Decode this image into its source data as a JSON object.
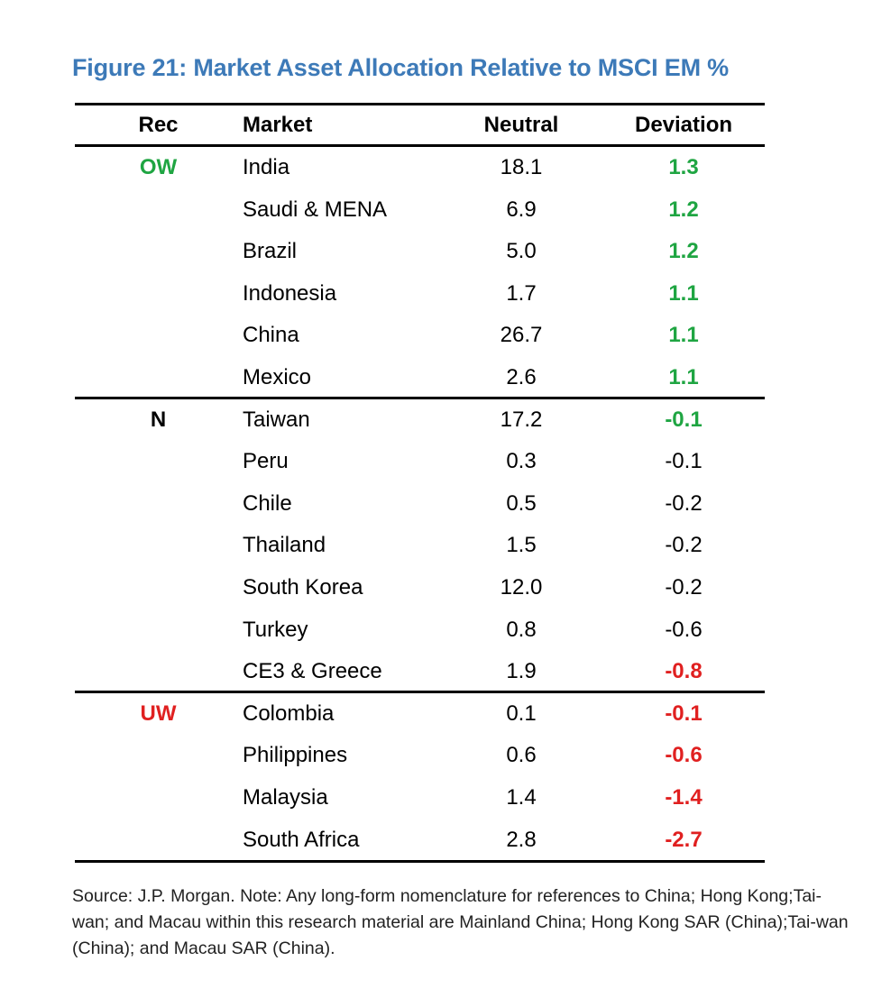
{
  "title": "Figure 21: Market Asset Allocation Relative to MSCI EM %",
  "colors": {
    "title": "#3d7ab8",
    "positive": "#1fa542",
    "negative": "#e02020",
    "neutral": "#000000"
  },
  "headers": {
    "rec": "Rec",
    "market": "Market",
    "neutral": "Neutral",
    "deviation": "Deviation"
  },
  "rows": [
    {
      "rec": "OW",
      "rec_color": "positive",
      "market": "India",
      "neutral": "18.1",
      "deviation": "1.3",
      "dev_color": "positive",
      "dev_bold": true
    },
    {
      "rec": "",
      "market": "Saudi & MENA",
      "neutral": "6.9",
      "deviation": "1.2",
      "dev_color": "positive",
      "dev_bold": true
    },
    {
      "rec": "",
      "market": "Brazil",
      "neutral": "5.0",
      "deviation": "1.2",
      "dev_color": "positive",
      "dev_bold": true
    },
    {
      "rec": "",
      "market": "Indonesia",
      "neutral": "1.7",
      "deviation": "1.1",
      "dev_color": "positive",
      "dev_bold": true
    },
    {
      "rec": "",
      "market": "China",
      "neutral": "26.7",
      "deviation": "1.1",
      "dev_color": "positive",
      "dev_bold": true
    },
    {
      "rec": "",
      "market": "Mexico",
      "neutral": "2.6",
      "deviation": "1.1",
      "dev_color": "positive",
      "dev_bold": true
    },
    {
      "rec": "N",
      "rec_color": "neutral",
      "market": "Taiwan",
      "neutral": "17.2",
      "deviation": "-0.1",
      "dev_color": "positive",
      "dev_bold": true
    },
    {
      "rec": "",
      "market": "Peru",
      "neutral": "0.3",
      "deviation": "-0.1",
      "dev_color": "neutral",
      "dev_bold": false
    },
    {
      "rec": "",
      "market": "Chile",
      "neutral": "0.5",
      "deviation": "-0.2",
      "dev_color": "neutral",
      "dev_bold": false
    },
    {
      "rec": "",
      "market": "Thailand",
      "neutral": "1.5",
      "deviation": "-0.2",
      "dev_color": "neutral",
      "dev_bold": false
    },
    {
      "rec": "",
      "market": "South Korea",
      "neutral": "12.0",
      "deviation": "-0.2",
      "dev_color": "neutral",
      "dev_bold": false
    },
    {
      "rec": "",
      "market": "Turkey",
      "neutral": "0.8",
      "deviation": "-0.6",
      "dev_color": "neutral",
      "dev_bold": false
    },
    {
      "rec": "",
      "market": "CE3 & Greece",
      "neutral": "1.9",
      "deviation": "-0.8",
      "dev_color": "negative",
      "dev_bold": true
    },
    {
      "rec": "UW",
      "rec_color": "negative",
      "market": "Colombia",
      "neutral": "0.1",
      "deviation": "-0.1",
      "dev_color": "negative",
      "dev_bold": true
    },
    {
      "rec": "",
      "market": "Philippines",
      "neutral": "0.6",
      "deviation": "-0.6",
      "dev_color": "negative",
      "dev_bold": true
    },
    {
      "rec": "",
      "market": "Malaysia",
      "neutral": "1.4",
      "deviation": "-1.4",
      "dev_color": "negative",
      "dev_bold": true
    },
    {
      "rec": "",
      "market": "South Africa",
      "neutral": "2.8",
      "deviation": "-2.7",
      "dev_color": "negative",
      "dev_bold": true
    }
  ],
  "group_break_after": [
    5,
    12
  ],
  "source": "Source: J.P. Morgan. Note: Any long-form nomenclature for references to China; Hong Kong;Tai-wan; and Macau within this research material are Mainland China; Hong Kong SAR (China);Tai-wan (China); and Macau SAR (China)."
}
